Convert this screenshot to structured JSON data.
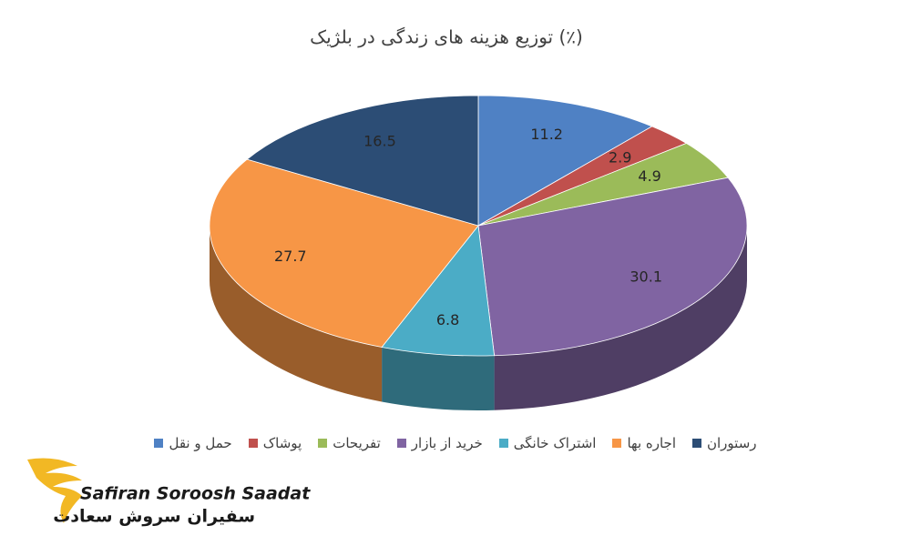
{
  "chart_data": {
    "type": "pie",
    "title": "توزیع هزینه های زندگی در بلژیک (٪)",
    "categories": [
      "حمل و نقل",
      "پوشاک",
      "تفریحات",
      "خرید از بازار",
      "اشتراک خانگی",
      "اجاره بها",
      "رستوران"
    ],
    "values": [
      11.2,
      2.9,
      4.9,
      30.1,
      6.8,
      27.7,
      16.5
    ],
    "colors": [
      "#4f81c4",
      "#c0504d",
      "#9bbb59",
      "#8064a2",
      "#4bacc6",
      "#f79646",
      "#2c4d75"
    ],
    "legend": "bottom"
  },
  "logo": {
    "latin": "Safiran Soroosh Saadat",
    "persian": "سفیران سروش سعادت"
  }
}
